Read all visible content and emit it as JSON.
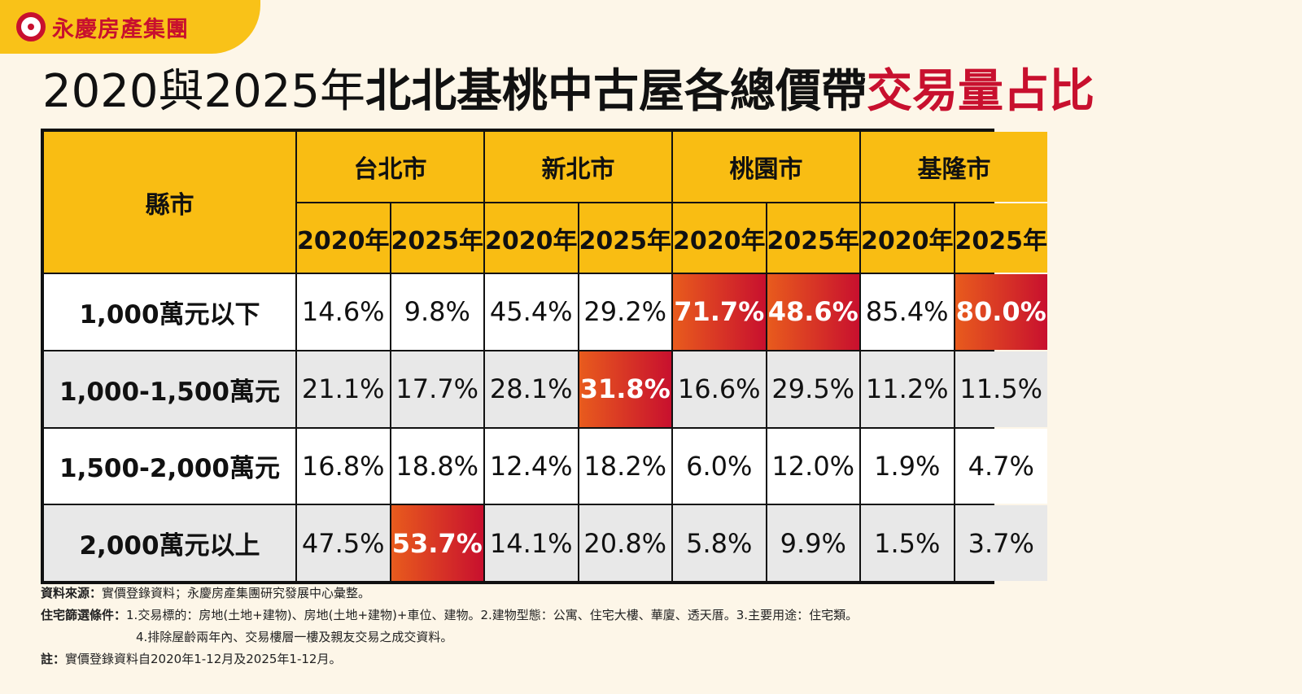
{
  "brand": {
    "name": "永慶房產集團"
  },
  "title": {
    "part1": "2020與2025年",
    "part2": "北北基桃中古屋各總價帶",
    "part3": "交易量占比"
  },
  "table": {
    "county_header": "縣市",
    "cities": [
      "台北市",
      "新北市",
      "桃園市",
      "基隆市"
    ],
    "year_2020": "2020年",
    "year_2025": "2025年",
    "rows": [
      {
        "label": "1,000萬元以下",
        "values": [
          "14.6%",
          "9.8%",
          "45.4%",
          "29.2%",
          "71.7%",
          "48.6%",
          "85.4%",
          "80.0%"
        ]
      },
      {
        "label": "1,000-1,500萬元",
        "values": [
          "21.1%",
          "17.7%",
          "28.1%",
          "31.8%",
          "16.6%",
          "29.5%",
          "11.2%",
          "11.5%"
        ]
      },
      {
        "label": "1,500-2,000萬元",
        "values": [
          "16.8%",
          "18.8%",
          "12.4%",
          "18.2%",
          "6.0%",
          "12.0%",
          "1.9%",
          "4.7%"
        ]
      },
      {
        "label": "2,000萬元以上",
        "values": [
          "47.5%",
          "53.7%",
          "14.1%",
          "20.8%",
          "5.8%",
          "9.9%",
          "1.5%",
          "3.7%"
        ]
      }
    ],
    "highlight_color_start": "#e85b1d",
    "highlight_color_end": "#c8102e"
  },
  "notes": {
    "source_label": "資料來源：",
    "source_text": "實價登錄資料；永慶房產集團研究發展中心彙整。",
    "filter_label": "住宅篩選條件：",
    "filter_line1": "1.交易標的：房地(土地+建物)、房地(土地+建物)+車位、建物。2.建物型態：公寓、住宅大樓、華廈、透天厝。3.主要用途：住宅類。",
    "filter_line2": "4.排除屋齡兩年內、交易樓層一樓及親友交易之成交資料。",
    "note_label": "註：",
    "note_text": "實價登錄資料自2020年1-12月及2025年1-12月。"
  }
}
